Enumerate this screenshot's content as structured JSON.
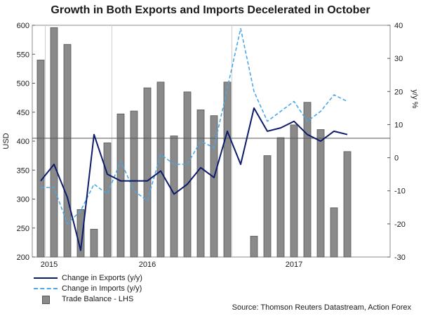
{
  "chart_data": {
    "type": "bar+line",
    "title": "Growth in Both Exports and Imports Decelerated in October",
    "ylabel_left": "USD",
    "ylabel_right": "y/y %",
    "ylim_left": [
      200,
      600
    ],
    "yticks_left": [
      200,
      250,
      300,
      350,
      400,
      450,
      500,
      550,
      600
    ],
    "ylim_right": [
      -30,
      40
    ],
    "yticks_right": [
      -30,
      -20,
      -10,
      0,
      10,
      20,
      30,
      40
    ],
    "x_labels": [
      "2015",
      "2016",
      "2017"
    ],
    "series": [
      {
        "name": "Trade Balance - LHS",
        "kind": "bar",
        "color": "#8a8a8a",
        "values": [
          540,
          596,
          567,
          282,
          248,
          397,
          447,
          452,
          492,
          502,
          409,
          485,
          454,
          444,
          502,
          null,
          236,
          375,
          406,
          428,
          467,
          420,
          285,
          382
        ]
      },
      {
        "name": "Change in Exports (y/y)",
        "kind": "line",
        "color": "#0d1b6b",
        "values": [
          -7,
          -2,
          -12,
          -28,
          7,
          -5,
          -7,
          -7,
          -7,
          -4,
          -11,
          -8,
          -3,
          -6,
          8,
          -2,
          15,
          8,
          9,
          11,
          7,
          5,
          8,
          7
        ]
      },
      {
        "name": "Change in Imports (y/y)",
        "kind": "line",
        "color": "#4aa8e8",
        "values": [
          -9,
          -9,
          -20,
          -16,
          -8,
          -11,
          -1,
          -10,
          -13,
          1,
          -2,
          -2,
          5,
          3,
          21,
          39,
          20,
          11,
          14,
          17,
          11,
          14,
          19,
          17
        ]
      }
    ],
    "reference_lines": [
      {
        "axis": "left",
        "value": 405
      }
    ]
  },
  "legend": {
    "exports": "Change in Exports (y/y)",
    "imports": "Change in Imports (y/y)",
    "trade": "Trade Balance - LHS"
  },
  "source": "Source: Thomson Reuters Datastream, Action Forex"
}
